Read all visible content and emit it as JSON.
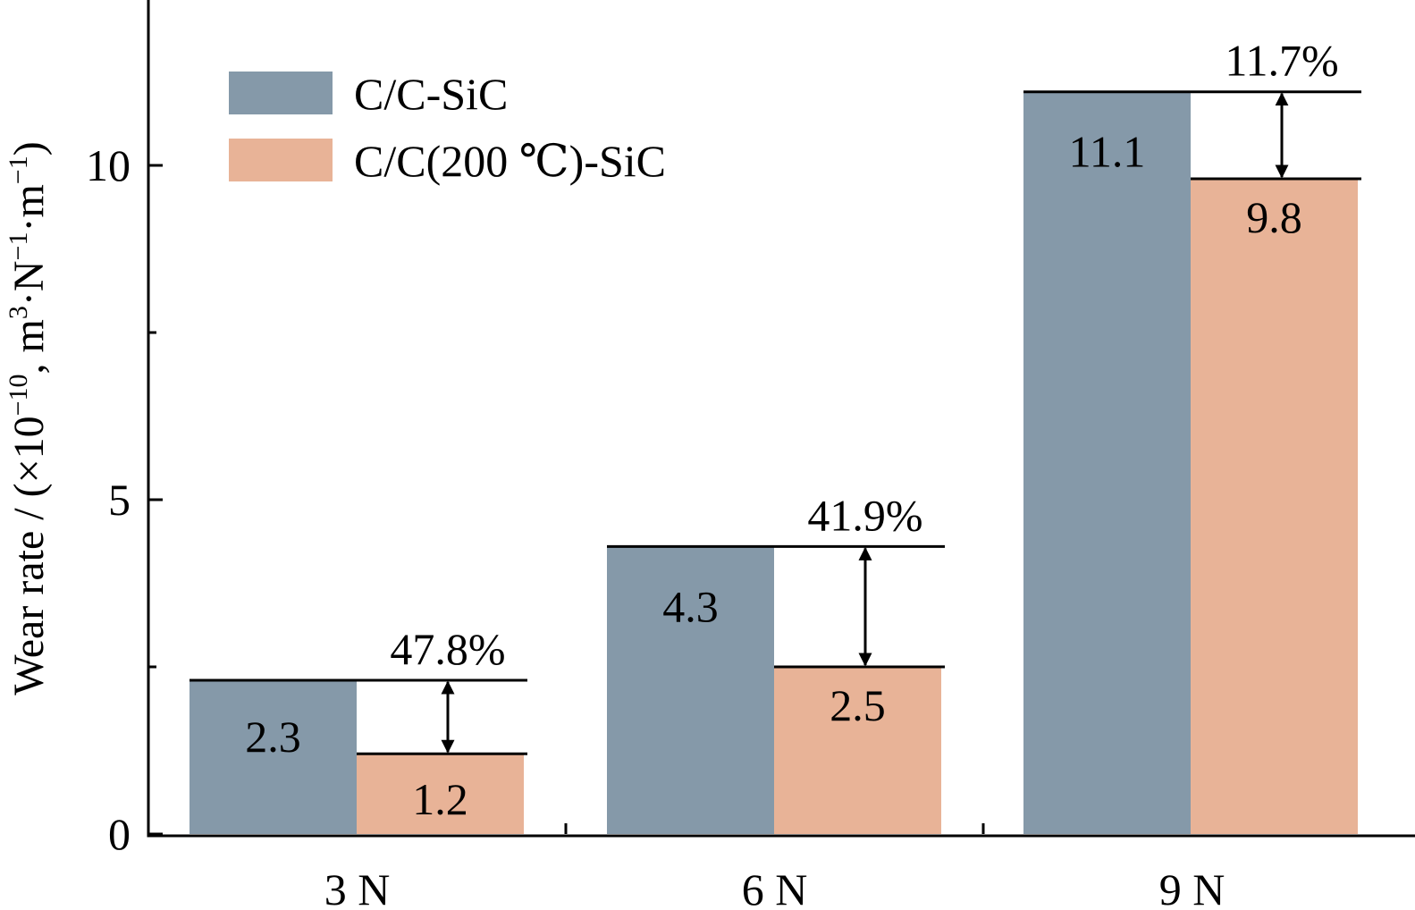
{
  "chart_data": {
    "type": "bar",
    "categories": [
      "3 N",
      "6 N",
      "9 N"
    ],
    "series": [
      {
        "name": "C/C-SiC",
        "values": [
          2.3,
          4.3,
          11.1
        ],
        "color": "#8599a9"
      },
      {
        "name": "C/C(200 ℃)-SiC",
        "values": [
          1.2,
          2.5,
          9.8
        ],
        "color": "#e8b397"
      }
    ],
    "data_labels": [
      [
        "2.3",
        "4.3",
        "11.1"
      ],
      [
        "1.2",
        "2.5",
        "9.8"
      ]
    ],
    "reduction_labels": [
      "47.8%",
      "41.9%",
      "11.7%"
    ],
    "ylabel": {
      "prefix": "Wear rate / (×10",
      "exp1": "−10",
      "mid": ", m",
      "exp2": "3",
      "mid2": "·N",
      "exp3": "−1",
      "mid3": "·m",
      "exp4": "−1",
      "suffix": ")"
    },
    "ylim": [
      0,
      12.5
    ],
    "yticks": [
      0,
      5,
      10
    ],
    "yticks_minor": [
      2.5,
      7.5,
      12.5
    ],
    "legend_position": "top-left",
    "grid": false
  }
}
